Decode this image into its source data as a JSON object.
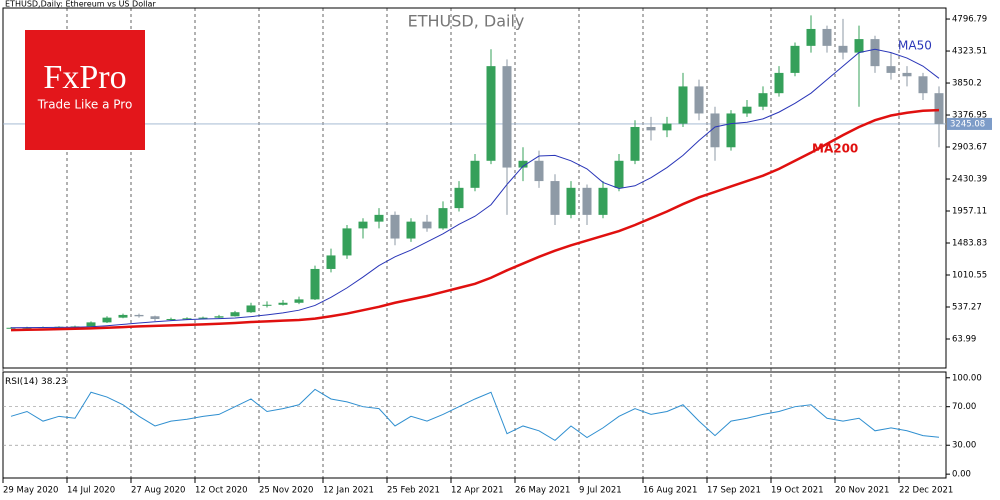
{
  "chart_data": [
    {
      "type": "candlestick",
      "header": "ETHUSD,Daily:  Ethereum vs US Dollar",
      "title": "ETHUSD, Daily",
      "logo": {
        "brand": "FxPro",
        "slogan": "Trade Like a Pro"
      },
      "categories": [
        "29 May 2020",
        null,
        null,
        null,
        "14 Jul 2020",
        null,
        null,
        null,
        "27 Aug 2020",
        null,
        null,
        null,
        "12 Oct 2020",
        null,
        null,
        null,
        "25 Nov 2020",
        null,
        null,
        null,
        "12 Jan 2021",
        null,
        null,
        null,
        "25 Feb 2021",
        null,
        null,
        null,
        "12 Apr 2021",
        null,
        null,
        null,
        "26 May 2021",
        null,
        null,
        null,
        "9 Jul 2021",
        null,
        null,
        null,
        "16 Aug 2021",
        null,
        null,
        null,
        "17 Sep 2021",
        null,
        null,
        null,
        "19 Oct 2021",
        null,
        null,
        null,
        "20 Nov 2021",
        null,
        null,
        null,
        "22 Dec 2021",
        null,
        null
      ],
      "ohlc": {
        "name": "ETHUSD",
        "up_color": "#35a05a",
        "down_color": "#8e9aa6",
        "open": [
          225,
          230,
          235,
          240,
          245,
          250,
          310,
          380,
          420,
          400,
          360,
          360,
          370,
          380,
          400,
          460,
          560,
          570,
          600,
          650,
          1100,
          1300,
          1700,
          1800,
          1900,
          1550,
          1800,
          1700,
          2000,
          2300,
          2700,
          4100,
          2600,
          2700,
          2400,
          1900,
          2300,
          1900,
          2300,
          2700,
          3200,
          3150,
          3250,
          3800,
          3400,
          2900,
          3400,
          3500,
          3700,
          4000,
          4400,
          4650,
          4400,
          4300,
          4500,
          4100,
          4000,
          3950,
          3700
        ],
        "high": [
          240,
          245,
          248,
          252,
          262,
          325,
          400,
          440,
          440,
          410,
          380,
          385,
          395,
          420,
          480,
          600,
          620,
          640,
          690,
          1150,
          1400,
          1750,
          1850,
          2000,
          1950,
          1850,
          1900,
          2100,
          2400,
          2800,
          4350,
          4200,
          2900,
          2850,
          2500,
          2400,
          2350,
          2400,
          2800,
          3300,
          3350,
          3350,
          4000,
          3900,
          3500,
          3450,
          3600,
          3800,
          4100,
          4450,
          4850,
          4700,
          4800,
          4700,
          4550,
          4300,
          4100,
          4000,
          3800
        ],
        "low": [
          220,
          225,
          228,
          232,
          238,
          245,
          300,
          370,
          380,
          330,
          340,
          345,
          360,
          370,
          395,
          450,
          530,
          560,
          580,
          640,
          1050,
          1250,
          1550,
          1700,
          1450,
          1500,
          1650,
          1680,
          1950,
          2250,
          2650,
          1900,
          2400,
          2300,
          1750,
          1850,
          1750,
          1850,
          2250,
          2650,
          3000,
          3050,
          3200,
          3300,
          2700,
          2850,
          3350,
          3450,
          3650,
          3950,
          4300,
          4300,
          4200,
          3500,
          4000,
          3900,
          3800,
          3600,
          2900
        ],
        "close": [
          230,
          235,
          240,
          245,
          250,
          310,
          380,
          420,
          400,
          360,
          360,
          370,
          380,
          400,
          460,
          560,
          570,
          600,
          650,
          1100,
          1300,
          1700,
          1800,
          1900,
          1550,
          1800,
          1700,
          2000,
          2300,
          2700,
          4100,
          2600,
          2700,
          2400,
          1900,
          2300,
          1900,
          2300,
          2700,
          3200,
          3150,
          3250,
          3800,
          3400,
          2900,
          3400,
          3500,
          3700,
          4000,
          4400,
          4650,
          4400,
          4300,
          4500,
          4100,
          4000,
          3950,
          3700,
          3245.08
        ]
      },
      "series": [
        {
          "name": "MA50",
          "color": "#2a36b8",
          "values": [
            230,
            232,
            234,
            236,
            238,
            245,
            260,
            280,
            300,
            320,
            335,
            350,
            360,
            365,
            375,
            395,
            420,
            450,
            490,
            560,
            680,
            820,
            980,
            1150,
            1280,
            1380,
            1500,
            1620,
            1760,
            1880,
            2050,
            2350,
            2620,
            2770,
            2780,
            2700,
            2580,
            2380,
            2290,
            2330,
            2450,
            2600,
            2780,
            3000,
            3200,
            3250,
            3270,
            3320,
            3420,
            3550,
            3700,
            3900,
            4100,
            4300,
            4350,
            4300,
            4220,
            4100,
            3920
          ]
        },
        {
          "name": "MA200",
          "color": "#e0100f",
          "values": [
            195,
            200,
            205,
            210,
            215,
            222,
            230,
            240,
            250,
            258,
            265,
            272,
            280,
            290,
            300,
            315,
            325,
            335,
            345,
            365,
            400,
            440,
            490,
            540,
            600,
            650,
            700,
            760,
            820,
            880,
            970,
            1080,
            1180,
            1280,
            1370,
            1450,
            1520,
            1590,
            1660,
            1750,
            1850,
            1950,
            2060,
            2160,
            2240,
            2320,
            2400,
            2480,
            2580,
            2700,
            2820,
            2950,
            3080,
            3200,
            3300,
            3370,
            3410,
            3440,
            3450
          ]
        }
      ],
      "ylim": [
        -365,
        4960
      ],
      "yticks": [
        63.99,
        537.27,
        1010.55,
        1483.83,
        1957.11,
        2430.39,
        2903.67,
        3376.95,
        3850.2,
        4323.51,
        4796.79
      ]
    },
    {
      "type": "line",
      "series": [
        {
          "name": "RSI(14)",
          "color": "#2f8fd0",
          "values": [
            60,
            65,
            55,
            60,
            58,
            85,
            80,
            72,
            60,
            50,
            55,
            57,
            60,
            62,
            70,
            78,
            65,
            68,
            72,
            88,
            78,
            75,
            70,
            68,
            50,
            60,
            55,
            62,
            70,
            78,
            85,
            42,
            50,
            45,
            35,
            50,
            38,
            48,
            60,
            68,
            62,
            65,
            72,
            55,
            40,
            55,
            58,
            62,
            65,
            70,
            72,
            58,
            55,
            58,
            45,
            48,
            45,
            40,
            38.23
          ]
        }
      ],
      "ylim": [
        -4,
        106
      ],
      "yticks": [
        {
          "value": 0,
          "label": "0.00"
        },
        {
          "value": 30,
          "label": "30.00"
        },
        {
          "value": 70,
          "label": "70.00"
        },
        {
          "value": 100,
          "label": "100.00"
        }
      ],
      "levels": [
        30,
        70
      ]
    }
  ]
}
